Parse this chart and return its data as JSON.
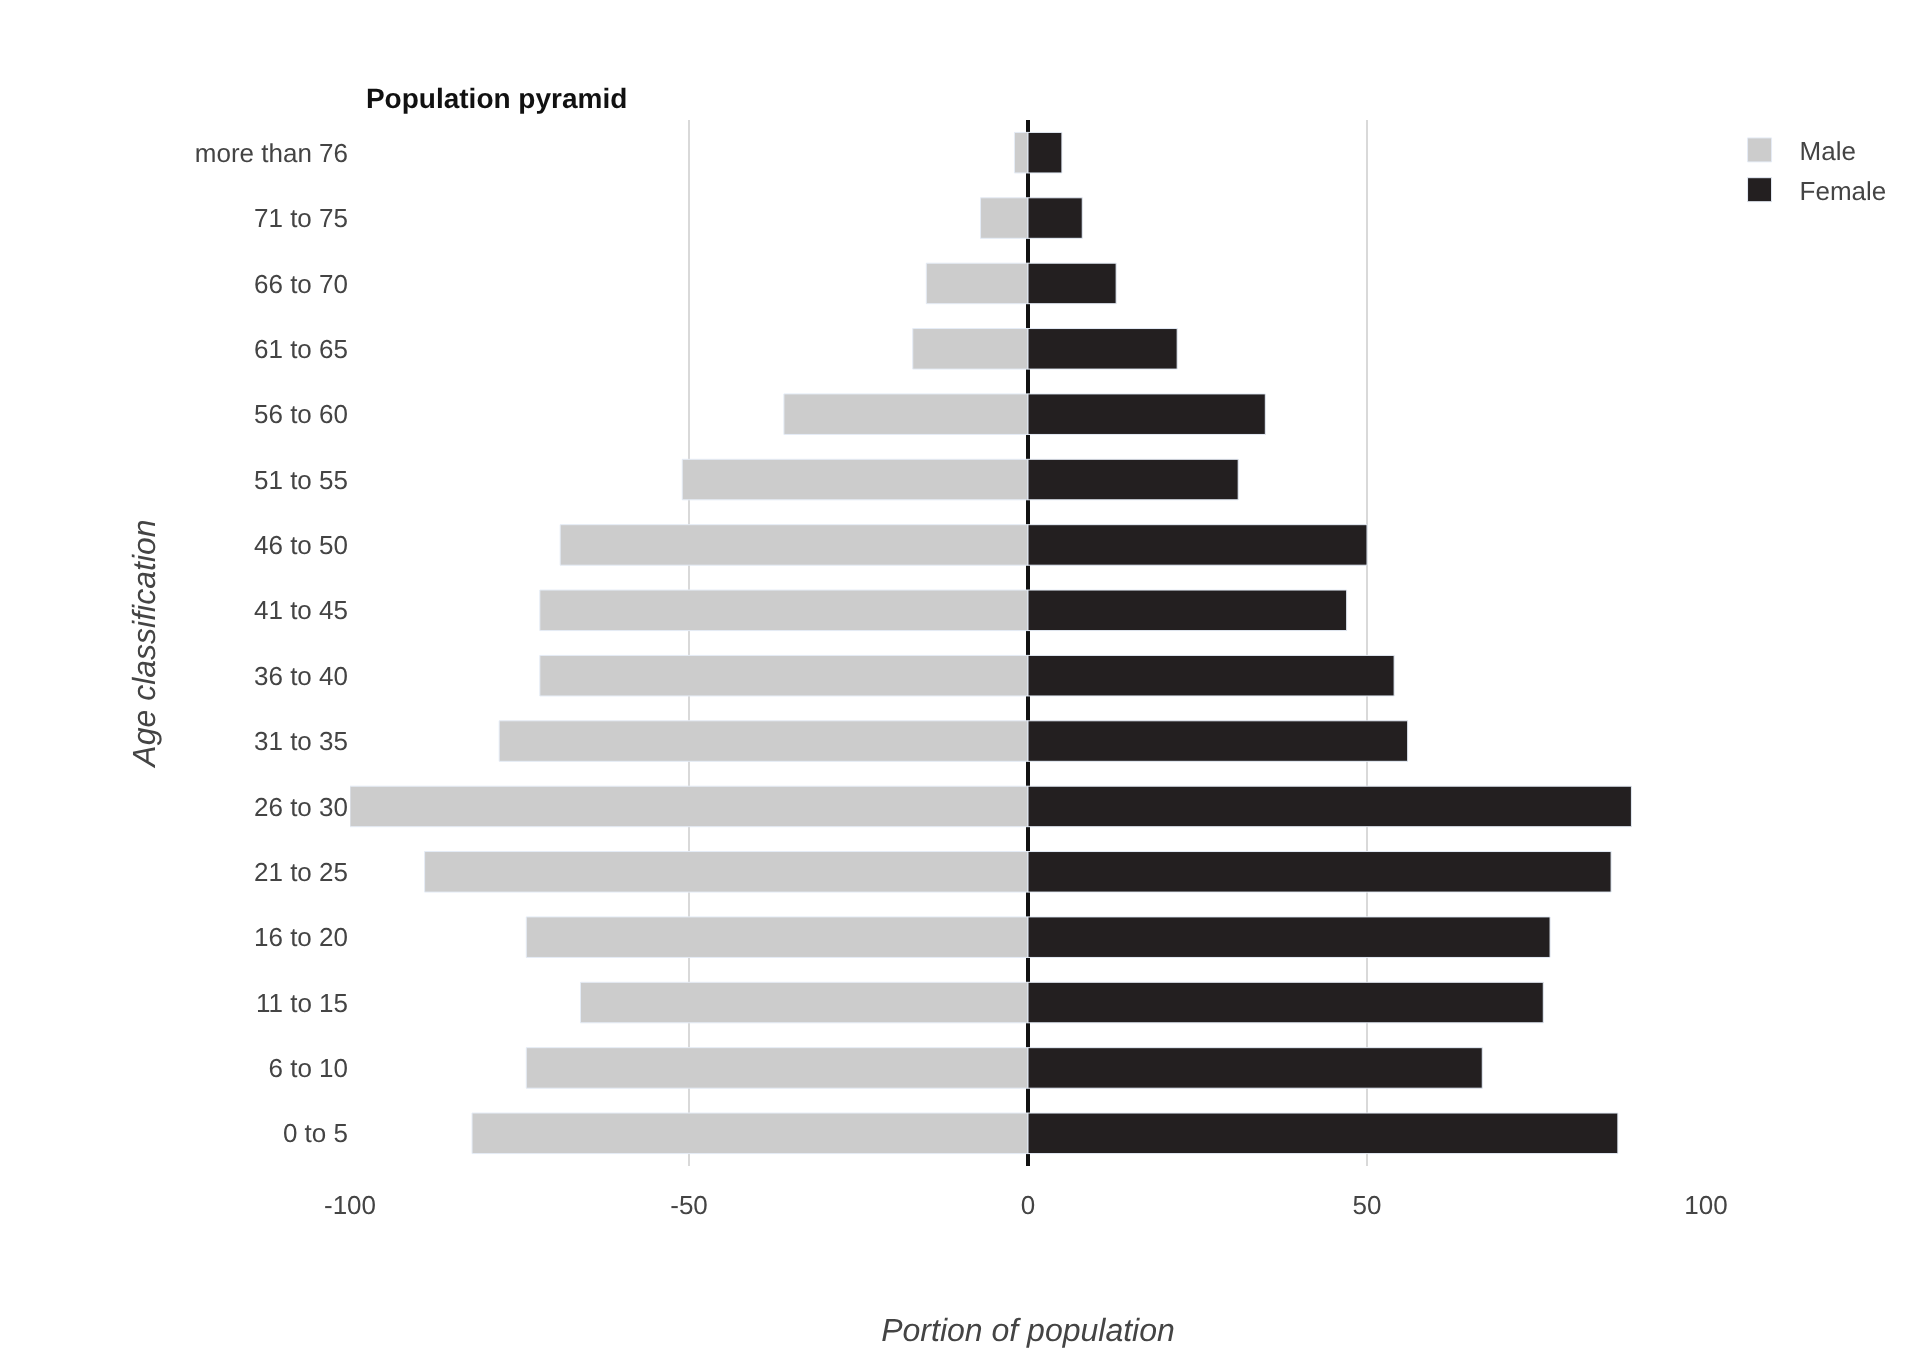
{
  "chart_data": {
    "type": "bar",
    "orientation": "horizontal",
    "title": "Population pyramid",
    "xlabel": "Portion of population",
    "ylabel": "Age classification",
    "categories": [
      "more than 76",
      "71 to 75",
      "66 to 70",
      "61 to 65",
      "56 to 60",
      "51 to 55",
      "46 to 50",
      "41 to 45",
      "36 to 40",
      "31 to 35",
      "26 to 30",
      "21 to 25",
      "16 to 20",
      "11 to 15",
      "6 to 10",
      "0 to 5"
    ],
    "series": [
      {
        "name": "Male",
        "color": "#cccccc",
        "values": [
          -2,
          -7,
          -15,
          -17,
          -36,
          -51,
          -69,
          -72,
          -72,
          -78,
          -100,
          -89,
          -74,
          -66,
          -74,
          -82
        ]
      },
      {
        "name": "Female",
        "color": "#231f20",
        "values": [
          5,
          8,
          13,
          22,
          35,
          31,
          50,
          47,
          54,
          56,
          89,
          86,
          77,
          76,
          67,
          87
        ]
      }
    ],
    "xlim": [
      -100,
      100
    ],
    "xticks": [
      -100,
      -50,
      0,
      50,
      100
    ],
    "stacked": true,
    "grid": "x",
    "legend": "top right"
  }
}
